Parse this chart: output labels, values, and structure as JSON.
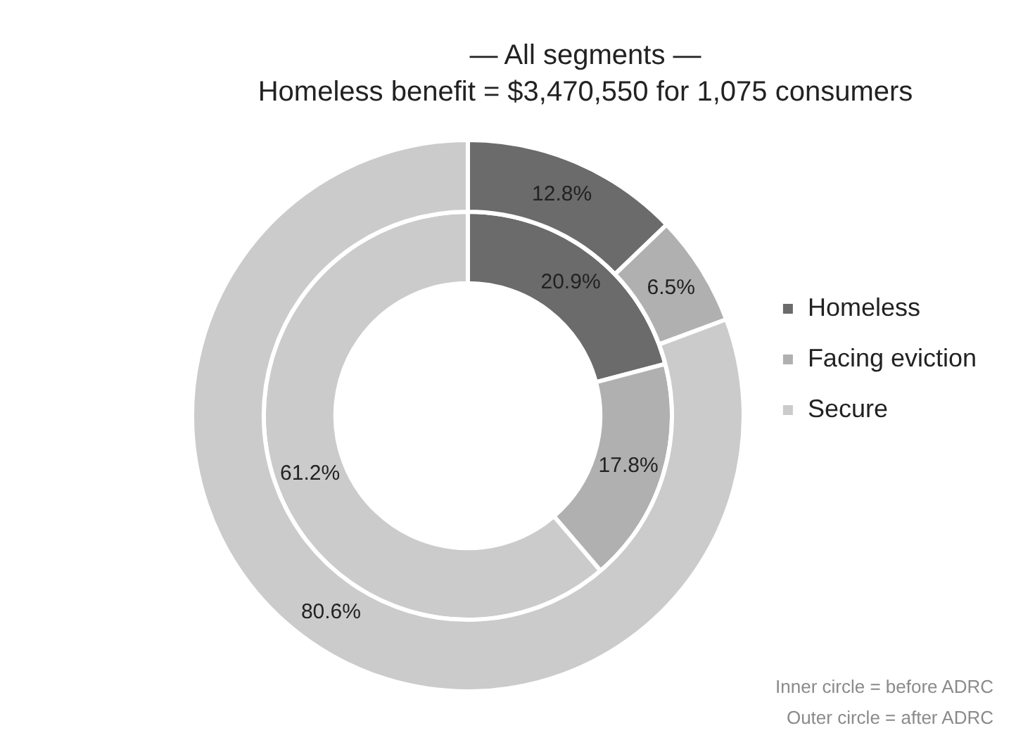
{
  "chart_data": {
    "type": "donut",
    "title": "— All segments —",
    "subtitle": "Homeless benefit = $3,470,550 for 1,075 consumers",
    "categories": [
      "Homeless",
      "Facing eviction",
      "Secure"
    ],
    "series": [
      {
        "colors": [
          "#6b6b6b",
          "#b0b0b0",
          "#cbcbcb"
        ],
        "values": [
          12.8,
          6.5,
          80.6
        ],
        "value_labels": [
          "12.8%",
          "6.5%",
          "80.6%"
        ]
      },
      {
        "colors": [
          "#6b6b6b",
          "#b0b0b0",
          "#cbcbcb"
        ],
        "values": [
          20.9,
          17.8,
          61.2
        ],
        "value_labels": [
          "20.9%",
          "17.8%",
          "61.2%"
        ]
      }
    ],
    "legend": "right",
    "annotations": [
      "Inner circle = before ADRC",
      "Outer circle = after ADRC"
    ]
  }
}
